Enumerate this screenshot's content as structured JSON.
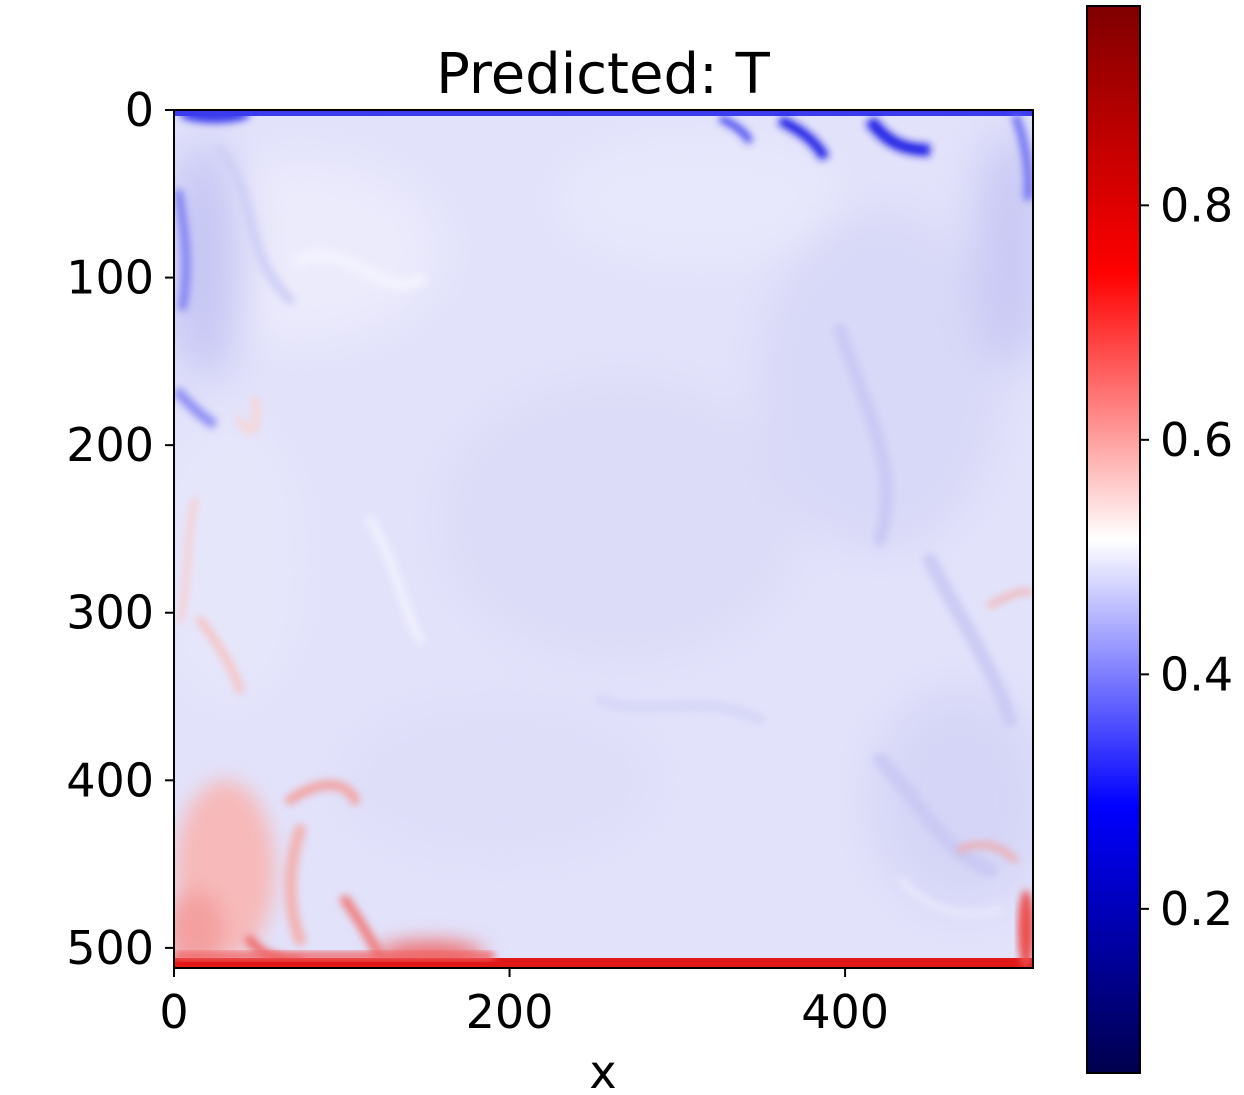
{
  "chart_data": {
    "type": "heatmap",
    "title": "Predicted: T",
    "xlabel": "x",
    "ylabel": "",
    "xlim": [
      0,
      512
    ],
    "ylim": [
      512,
      0
    ],
    "x_ticks": [
      0,
      200,
      400
    ],
    "y_ticks": [
      0,
      100,
      200,
      300,
      400,
      500
    ],
    "colormap": "seismic",
    "colorbar": {
      "vmin": 0.06,
      "vmax": 0.97,
      "ticks": [
        0.2,
        0.4,
        0.6,
        0.8
      ],
      "tick_labels": [
        "0.2",
        "0.4",
        "0.6",
        "0.8"
      ]
    },
    "field_summary": {
      "background_value": 0.47,
      "cold_region": "top boundary (y ≈ 0–30) with values down to ≈ 0.25",
      "hot_region": "bottom boundary (y ≈ 500–512) with values up to ≈ 0.95; warm plumes rising at lower-left (x ≈ 0–120, y ≈ 380–512)"
    }
  }
}
